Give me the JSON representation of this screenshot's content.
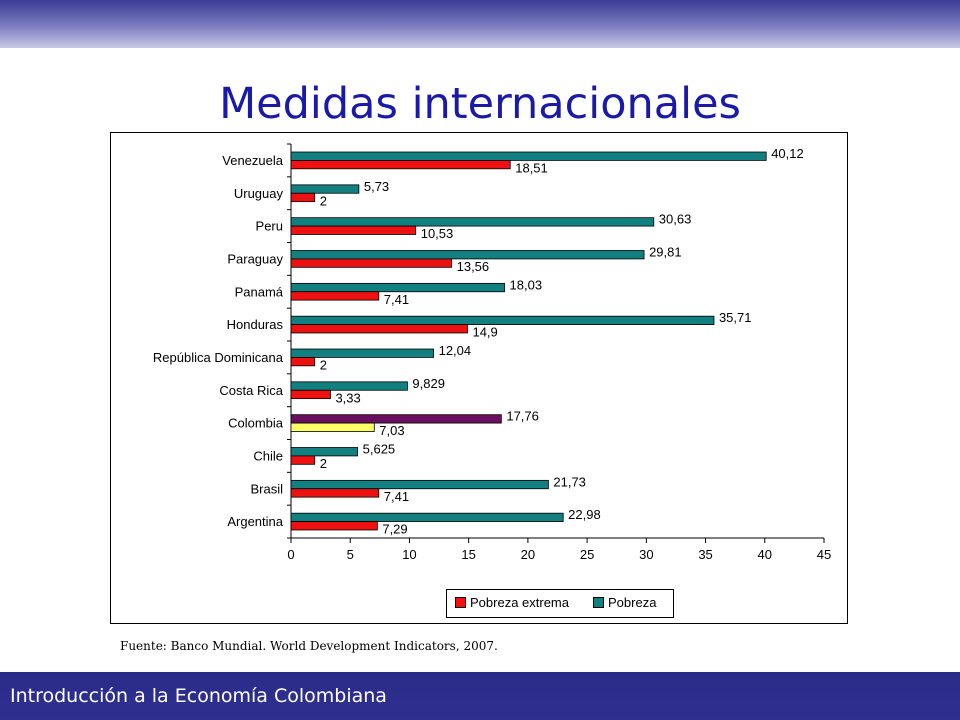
{
  "slide": {
    "title": "Medidas internacionales",
    "source": "Fuente: Banco Mundial. World Development Indicators, 2007.",
    "footer": "Introducción a la Economía Colombiana"
  },
  "colors": {
    "pobreza": "#128080",
    "pobreza_extrema": "#ee1111",
    "colombia_pobreza": "#6a0f5f",
    "colombia_pobreza_extrema": "#ffff66",
    "title": "#1a1aa8",
    "band": "#2b2b8a"
  },
  "chart_data": {
    "type": "bar",
    "orientation": "horizontal",
    "categories": [
      "Venezuela",
      "Uruguay",
      "Peru",
      "Paraguay",
      "Panamá",
      "Honduras",
      "República Dominicana",
      "Costa Rica",
      "Colombia",
      "Chile",
      "Brasil",
      "Argentina"
    ],
    "series": [
      {
        "name": "Pobreza",
        "values": [
          40.12,
          5.73,
          30.63,
          29.81,
          18.03,
          35.71,
          12.04,
          9.829,
          17.76,
          5.625,
          21.73,
          22.98
        ],
        "labels": [
          "40,12",
          "5,73",
          "30,63",
          "29,81",
          "18,03",
          "35,71",
          "12,04",
          "9,829",
          "17,76",
          "5,625",
          "21,73",
          "22,98"
        ]
      },
      {
        "name": "Pobreza extrema",
        "values": [
          18.51,
          2,
          10.53,
          13.56,
          7.41,
          14.9,
          2,
          3.33,
          7.03,
          2,
          7.41,
          7.29
        ],
        "labels": [
          "18,51",
          "2",
          "10,53",
          "13,56",
          "7,41",
          "14,9",
          "2",
          "3,33",
          "7,03",
          "2",
          "7,41",
          "7,29"
        ]
      }
    ],
    "highlight_category": "Colombia",
    "xlim": [
      0,
      45
    ],
    "xticks": [
      "0",
      "5",
      "10",
      "15",
      "20",
      "25",
      "30",
      "35",
      "40",
      "45"
    ],
    "legend": {
      "placement": "bottom",
      "entries": [
        "Pobreza extrema",
        "Pobreza"
      ]
    },
    "grid": false
  }
}
